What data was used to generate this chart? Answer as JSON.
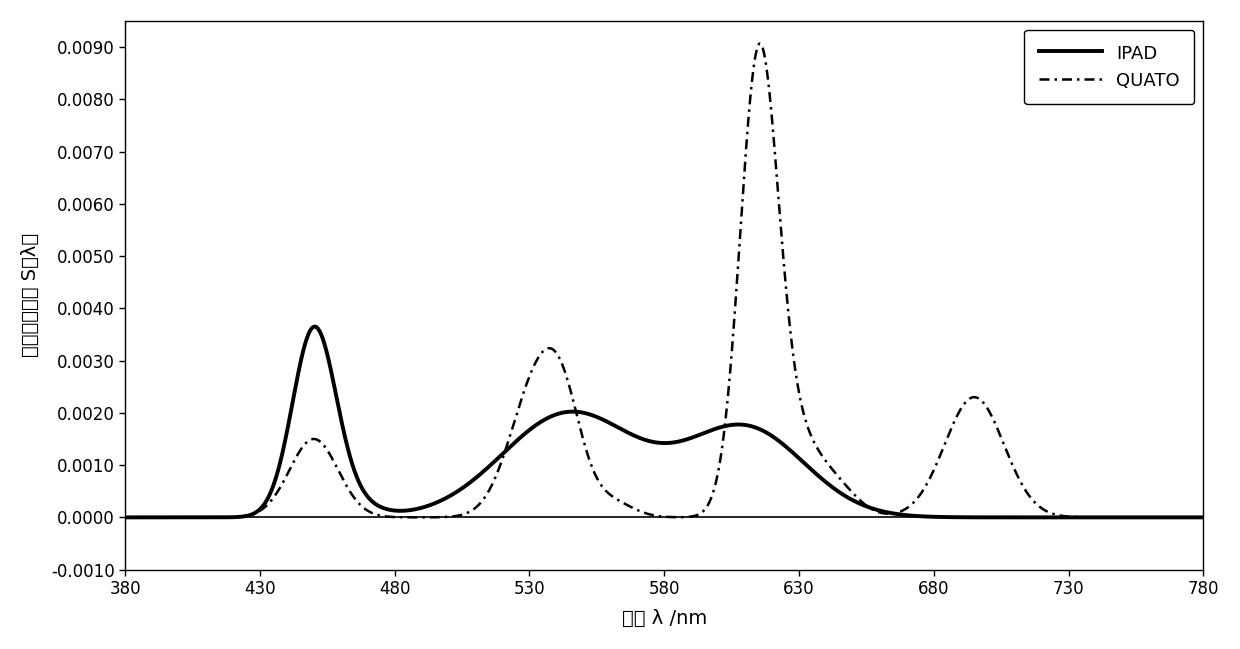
{
  "title": "",
  "xlabel": "波长 λ /nm",
  "ylabel": "光谱能量分布 S（λ）",
  "xlim": [
    380,
    780
  ],
  "ylim": [
    -0.001,
    0.0095
  ],
  "xticks": [
    380,
    430,
    480,
    530,
    580,
    630,
    680,
    730,
    780
  ],
  "yticks": [
    -0.001,
    0.0,
    0.001,
    0.002,
    0.003,
    0.004,
    0.005,
    0.006,
    0.007,
    0.008,
    0.009
  ],
  "ytick_labels": [
    "-0.0010",
    "0.0000",
    "0.0010",
    "0.0020",
    "0.0030",
    "0.0040",
    "0.0050",
    "0.0060",
    "0.0070",
    "0.0080",
    "0.0090"
  ],
  "legend_entries": [
    "IPAD",
    "QUATO"
  ],
  "line_color": "#000000",
  "background_color": "#ffffff",
  "ipad_linewidth": 2.8,
  "quato_linewidth": 1.8
}
